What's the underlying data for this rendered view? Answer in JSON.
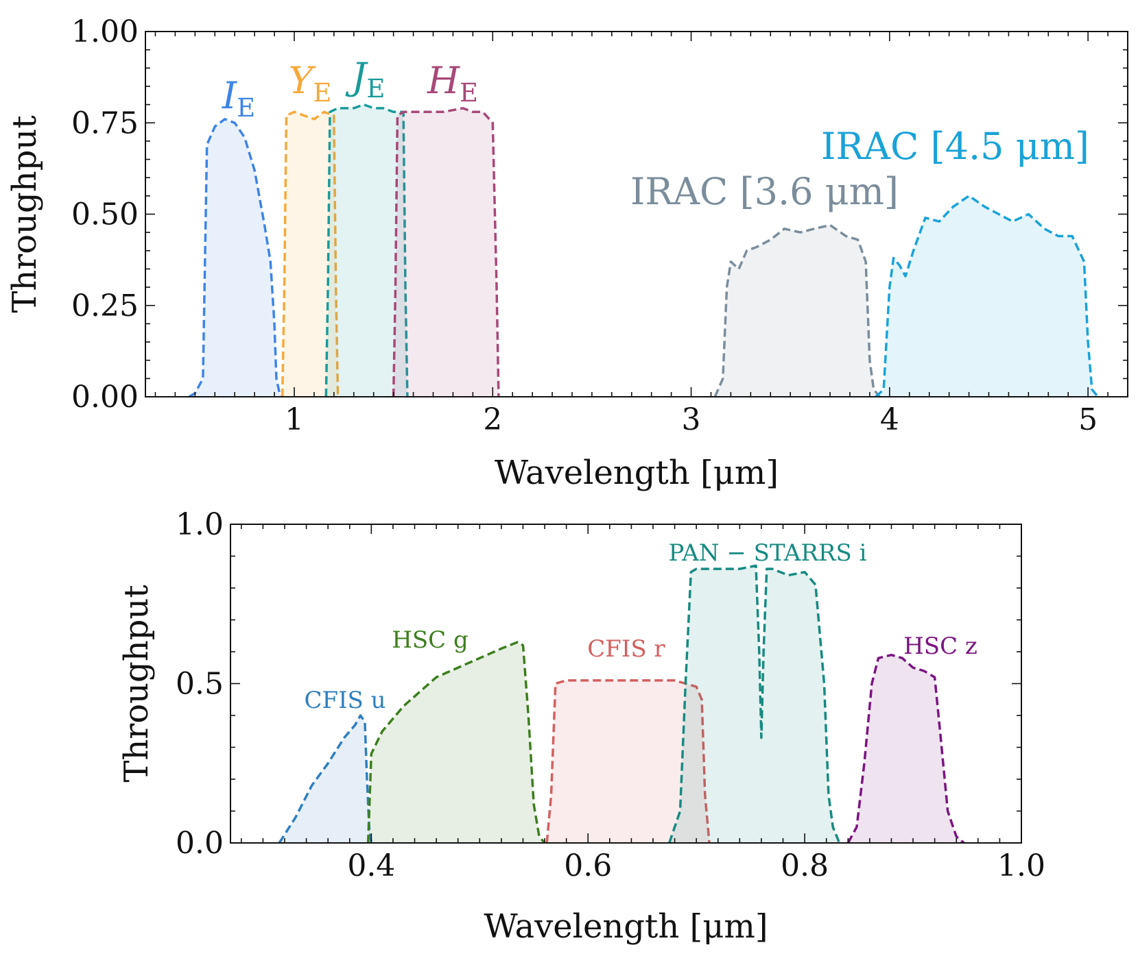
{
  "chart_data": [
    {
      "type": "area",
      "title": "",
      "xlabel": "Wavelength [μm]",
      "ylabel": "Throughput",
      "xlim": [
        0.25,
        5.2
      ],
      "ylim": [
        0,
        1.0
      ],
      "x_major_ticks": [
        1,
        2,
        3,
        4,
        5
      ],
      "x_minor_step": 0.1,
      "y_major_ticks": [
        0.0,
        0.25,
        0.5,
        0.75,
        1.0
      ],
      "y_minor_step": 0.05,
      "x_tick_labels": [
        "1",
        "2",
        "3",
        "4",
        "5"
      ],
      "y_tick_labels": [
        "0.00",
        "0.25",
        "0.50",
        "0.75",
        "1.00"
      ],
      "series": [
        {
          "name": "I_E",
          "label_main": "I",
          "label_sub": "E",
          "label_italic": true,
          "color": "#3f84e5",
          "x": [
            0.47,
            0.5,
            0.54,
            0.56,
            0.6,
            0.65,
            0.7,
            0.75,
            0.8,
            0.85,
            0.88,
            0.9,
            0.91,
            0.93
          ],
          "y": [
            0.0,
            0.01,
            0.05,
            0.69,
            0.74,
            0.76,
            0.75,
            0.71,
            0.62,
            0.47,
            0.37,
            0.2,
            0.05,
            0.0
          ]
        },
        {
          "name": "Y_E",
          "label_main": "Y",
          "label_sub": "E",
          "label_italic": true,
          "color": "#f6a93c",
          "x": [
            0.94,
            0.95,
            0.96,
            1.0,
            1.05,
            1.1,
            1.15,
            1.2,
            1.21,
            1.22
          ],
          "y": [
            0.0,
            0.3,
            0.77,
            0.78,
            0.77,
            0.76,
            0.78,
            0.77,
            0.3,
            0.0
          ]
        },
        {
          "name": "J_E",
          "label_main": "J",
          "label_sub": "E",
          "label_italic": true,
          "color": "#1a9a9a",
          "x": [
            1.16,
            1.17,
            1.18,
            1.22,
            1.3,
            1.35,
            1.4,
            1.45,
            1.5,
            1.53,
            1.55,
            1.56,
            1.57
          ],
          "y": [
            0.0,
            0.3,
            0.78,
            0.79,
            0.79,
            0.8,
            0.79,
            0.79,
            0.78,
            0.78,
            0.78,
            0.3,
            0.0
          ]
        },
        {
          "name": "H_E",
          "label_main": "H",
          "label_sub": "E",
          "label_italic": true,
          "color": "#a84878",
          "x": [
            1.5,
            1.51,
            1.52,
            1.55,
            1.65,
            1.75,
            1.85,
            1.9,
            1.95,
            2.0,
            2.02,
            2.03
          ],
          "y": [
            0.0,
            0.3,
            0.77,
            0.78,
            0.78,
            0.78,
            0.79,
            0.78,
            0.78,
            0.75,
            0.3,
            0.0
          ]
        },
        {
          "name": "IRAC [3.6 μm]",
          "label_main": "IRAC [3.6 μm]",
          "label_sub": "",
          "label_italic": false,
          "color": "#7b8d9c",
          "x": [
            3.12,
            3.16,
            3.18,
            3.2,
            3.24,
            3.28,
            3.33,
            3.4,
            3.47,
            3.55,
            3.62,
            3.7,
            3.78,
            3.84,
            3.88,
            3.9,
            3.92,
            3.95
          ],
          "y": [
            0.0,
            0.05,
            0.3,
            0.37,
            0.35,
            0.4,
            0.41,
            0.43,
            0.46,
            0.45,
            0.46,
            0.47,
            0.44,
            0.43,
            0.37,
            0.1,
            0.02,
            0.0
          ]
        },
        {
          "name": "IRAC [4.5 μm]",
          "label_main": "IRAC [4.5 μm]",
          "label_sub": "",
          "label_italic": false,
          "color": "#1aa2d8",
          "x": [
            3.93,
            3.97,
            4.0,
            4.02,
            4.05,
            4.08,
            4.12,
            4.18,
            4.25,
            4.32,
            4.4,
            4.48,
            4.55,
            4.62,
            4.7,
            4.78,
            4.85,
            4.92,
            4.98,
            5.0,
            5.02,
            5.05
          ],
          "y": [
            0.0,
            0.02,
            0.3,
            0.38,
            0.36,
            0.33,
            0.4,
            0.49,
            0.48,
            0.52,
            0.55,
            0.52,
            0.5,
            0.48,
            0.5,
            0.46,
            0.44,
            0.44,
            0.37,
            0.15,
            0.02,
            0.0
          ]
        }
      ]
    },
    {
      "type": "area",
      "title": "",
      "xlabel": "Wavelength [μm]",
      "ylabel": "Throughput",
      "xlim": [
        0.27,
        1.0
      ],
      "ylim": [
        0,
        1.0
      ],
      "x_major_ticks": [
        0.4,
        0.6,
        0.8,
        1.0
      ],
      "x_minor_step": 0.02,
      "y_major_ticks": [
        0.0,
        0.5,
        1.0
      ],
      "y_minor_step": 0.1,
      "x_tick_labels": [
        "0.4",
        "0.6",
        "0.8",
        "1.0"
      ],
      "y_tick_labels": [
        "0.0",
        "0.5",
        "1.0"
      ],
      "series": [
        {
          "name": "CFIS u",
          "label_main": "CFIS u",
          "label_sub": "",
          "label_italic": false,
          "color": "#2f7fbf",
          "x": [
            0.315,
            0.33,
            0.345,
            0.36,
            0.375,
            0.385,
            0.39,
            0.394,
            0.396,
            0.398,
            0.4
          ],
          "y": [
            0.0,
            0.08,
            0.18,
            0.25,
            0.33,
            0.37,
            0.4,
            0.38,
            0.2,
            0.05,
            0.0
          ]
        },
        {
          "name": "HSC g",
          "label_main": "HSC g",
          "label_sub": "",
          "label_italic": false,
          "color": "#3d7f1e",
          "x": [
            0.397,
            0.4,
            0.41,
            0.43,
            0.46,
            0.5,
            0.52,
            0.535,
            0.54,
            0.545,
            0.55,
            0.555,
            0.56
          ],
          "y": [
            0.0,
            0.28,
            0.35,
            0.43,
            0.52,
            0.58,
            0.61,
            0.63,
            0.62,
            0.4,
            0.12,
            0.02,
            0.0
          ]
        },
        {
          "name": "CFIS r",
          "label_main": "CFIS r",
          "label_sub": "",
          "label_italic": false,
          "color": "#d45f5f",
          "x": [
            0.562,
            0.566,
            0.57,
            0.58,
            0.6,
            0.62,
            0.64,
            0.66,
            0.68,
            0.69,
            0.7,
            0.705,
            0.708,
            0.712
          ],
          "y": [
            0.0,
            0.15,
            0.5,
            0.51,
            0.51,
            0.51,
            0.51,
            0.51,
            0.51,
            0.5,
            0.49,
            0.45,
            0.15,
            0.0
          ]
        },
        {
          "name": "PAN − STARRS i",
          "label_main": "PAN − STARRS i",
          "label_sub": "",
          "label_italic": false,
          "color": "#178a82",
          "x": [
            0.675,
            0.685,
            0.69,
            0.695,
            0.7,
            0.72,
            0.74,
            0.755,
            0.758,
            0.76,
            0.762,
            0.765,
            0.77,
            0.785,
            0.8,
            0.81,
            0.818,
            0.822,
            0.826,
            0.832
          ],
          "y": [
            0.0,
            0.1,
            0.5,
            0.85,
            0.86,
            0.86,
            0.86,
            0.87,
            0.6,
            0.33,
            0.6,
            0.86,
            0.86,
            0.84,
            0.85,
            0.81,
            0.5,
            0.15,
            0.05,
            0.0
          ]
        },
        {
          "name": "HSC z",
          "label_main": "HSC z",
          "label_sub": "",
          "label_italic": false,
          "color": "#7a1580",
          "x": [
            0.84,
            0.848,
            0.855,
            0.862,
            0.868,
            0.88,
            0.89,
            0.9,
            0.91,
            0.915,
            0.92,
            0.925,
            0.932,
            0.94,
            0.947
          ],
          "y": [
            0.0,
            0.05,
            0.25,
            0.5,
            0.58,
            0.59,
            0.58,
            0.55,
            0.54,
            0.53,
            0.52,
            0.35,
            0.1,
            0.02,
            0.0
          ]
        }
      ]
    }
  ]
}
